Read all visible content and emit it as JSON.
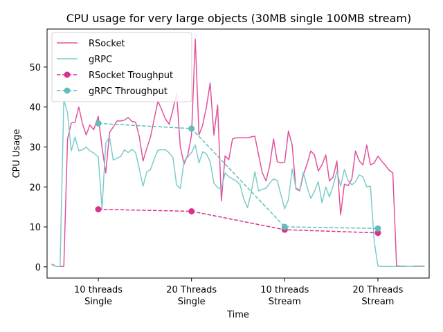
{
  "chart_data": {
    "type": "line",
    "title": "CPU usage for very large objects (30MB single 100MB stream)",
    "xlabel": "Time",
    "ylabel": "CPU Usage",
    "xlim": [
      -0.55,
      3.55
    ],
    "ylim": [
      -2.8,
      59.5
    ],
    "y_ticks": [
      0,
      10,
      20,
      30,
      40,
      50
    ],
    "x_ticks": [
      {
        "x": 0,
        "line1": "10 threads",
        "line2": "Single"
      },
      {
        "x": 1,
        "line1": "20 Threads",
        "line2": "Single"
      },
      {
        "x": 2,
        "line1": "10 threads",
        "line2": "Stream"
      },
      {
        "x": 3,
        "line1": "20 Threads",
        "line2": "Stream"
      }
    ],
    "grid": false,
    "legend_position": "top-left",
    "colors": {
      "rsocket": "#e0529c",
      "grpc": "#7ecbcb",
      "rsocket_throughput": "#d6338c",
      "grpc_throughput": "#62bcbc"
    },
    "series": [
      {
        "name": "RSocket",
        "style": "solid",
        "color_key": "rsocket",
        "x": [
          -0.5,
          -0.45,
          -0.41,
          -0.37,
          -0.33,
          -0.29,
          -0.25,
          -0.21,
          -0.17,
          -0.13,
          -0.09,
          -0.05,
          0.0,
          0.04,
          0.08,
          0.12,
          0.16,
          0.2,
          0.24,
          0.28,
          0.32,
          0.36,
          0.4,
          0.44,
          0.48,
          0.52,
          0.56,
          0.6,
          0.64,
          0.68,
          0.72,
          0.76,
          0.8,
          0.84,
          0.88,
          0.92,
          0.96,
          1.0,
          1.04,
          1.08,
          1.12,
          1.16,
          1.2,
          1.24,
          1.28,
          1.32,
          1.36,
          1.4,
          1.44,
          1.48,
          1.52,
          1.56,
          1.6,
          1.64,
          1.68,
          1.72,
          1.76,
          1.8,
          1.84,
          1.88,
          1.92,
          1.96,
          2.0,
          2.04,
          2.08,
          2.12,
          2.16,
          2.2,
          2.24,
          2.28,
          2.32,
          2.36,
          2.4,
          2.44,
          2.48,
          2.52,
          2.56,
          2.6,
          2.64,
          2.68,
          2.72,
          2.76,
          2.8,
          2.84,
          2.88,
          2.92,
          2.96,
          3.0,
          3.04,
          3.08,
          3.12,
          3.16,
          3.2,
          3.24,
          3.28,
          3.32,
          3.36,
          3.4,
          3.44,
          3.5
        ],
        "y": [
          0.7,
          0.1,
          0.1,
          0.1,
          32,
          36,
          36.2,
          40,
          35.8,
          33,
          35.5,
          34.3,
          37.6,
          30,
          23.5,
          33.6,
          35,
          36.5,
          36.5,
          36.7,
          37.4,
          36.4,
          36.2,
          32.5,
          26.5,
          29.7,
          32.5,
          37,
          41.5,
          39.3,
          37,
          35.7,
          39.3,
          43.5,
          30,
          25.7,
          28,
          33,
          57,
          33,
          35.5,
          40,
          46,
          33,
          40.5,
          16.5,
          27.8,
          26.8,
          32,
          32.3,
          32.3,
          32.3,
          32.3,
          32.5,
          32.7,
          28,
          23.5,
          21.5,
          25.5,
          32,
          26.3,
          26,
          26.2,
          34,
          30.5,
          19.5,
          19,
          23,
          25.7,
          29,
          28,
          24,
          25.5,
          28,
          21.5,
          22.5,
          26.5,
          13,
          20.7,
          20.3,
          22,
          29,
          26.5,
          25.5,
          30.5,
          25.5,
          26,
          27.7,
          26.5,
          25.4,
          24.2,
          23.5,
          0.3,
          0.2,
          0.2,
          0.1,
          0.1,
          0.2,
          0.2,
          0.2
        ]
      },
      {
        "name": "gRPC",
        "style": "solid",
        "color_key": "grpc",
        "x": [
          -0.5,
          -0.45,
          -0.41,
          -0.37,
          -0.33,
          -0.29,
          -0.25,
          -0.21,
          -0.17,
          -0.13,
          -0.09,
          -0.05,
          0.0,
          0.04,
          0.08,
          0.12,
          0.16,
          0.2,
          0.24,
          0.28,
          0.32,
          0.36,
          0.4,
          0.44,
          0.48,
          0.52,
          0.56,
          0.6,
          0.64,
          0.68,
          0.72,
          0.76,
          0.8,
          0.84,
          0.88,
          0.92,
          0.96,
          1.0,
          1.04,
          1.08,
          1.12,
          1.16,
          1.2,
          1.24,
          1.28,
          1.32,
          1.36,
          1.4,
          1.44,
          1.48,
          1.52,
          1.56,
          1.6,
          1.64,
          1.68,
          1.72,
          1.76,
          1.8,
          1.84,
          1.88,
          1.92,
          1.96,
          2.0,
          2.04,
          2.08,
          2.12,
          2.16,
          2.2,
          2.24,
          2.28,
          2.32,
          2.36,
          2.4,
          2.44,
          2.48,
          2.52,
          2.56,
          2.6,
          2.64,
          2.68,
          2.72,
          2.76,
          2.8,
          2.84,
          2.88,
          2.92,
          2.96,
          3.0,
          3.04,
          3.08,
          3.12,
          3.16,
          3.2,
          3.24,
          3.28,
          3.32,
          3.36,
          3.4,
          3.44,
          3.5
        ],
        "y": [
          0.5,
          0.1,
          0.1,
          41.8,
          38.5,
          29,
          32.5,
          29,
          29.3,
          30,
          29,
          28.5,
          27.5,
          14.5,
          31,
          32.5,
          26.7,
          27.2,
          27.6,
          29.3,
          28.6,
          29.4,
          28.6,
          24.5,
          20.2,
          23.8,
          24.3,
          27,
          29.2,
          29.3,
          29.3,
          28.5,
          27.4,
          20.5,
          19.6,
          26.5,
          27.5,
          28.6,
          30.5,
          26,
          28.8,
          28.3,
          26.3,
          21,
          19.8,
          19.5,
          23.5,
          22.6,
          22,
          21.5,
          20.6,
          17,
          14.8,
          18.5,
          23.8,
          19,
          19.4,
          19.7,
          21,
          22,
          21.6,
          18,
          14.5,
          16.8,
          24.5,
          19.8,
          19.2,
          23.7,
          20,
          17.1,
          19,
          21.3,
          16,
          20,
          17.5,
          20.3,
          23.9,
          20.2,
          24.4,
          21.6,
          20.5,
          21.3,
          23,
          22.5,
          20,
          20.2,
          6.4,
          0.2,
          0.1,
          0.1,
          0.1,
          0.1,
          0.1,
          0.1,
          0.1,
          0.1,
          0.1,
          0.1,
          0.1,
          0.1
        ]
      },
      {
        "name": "RSocket Troughput",
        "style": "dashed",
        "color_key": "rsocket_throughput",
        "markers": true,
        "x": [
          0,
          1,
          2,
          3
        ],
        "y": [
          14.4,
          13.9,
          9.3,
          8.5
        ]
      },
      {
        "name": "gRPC Throughput",
        "style": "dashed",
        "color_key": "grpc_throughput",
        "markers": true,
        "x": [
          0,
          1,
          2,
          3
        ],
        "y": [
          35.9,
          34.6,
          10.0,
          9.6
        ]
      }
    ]
  }
}
